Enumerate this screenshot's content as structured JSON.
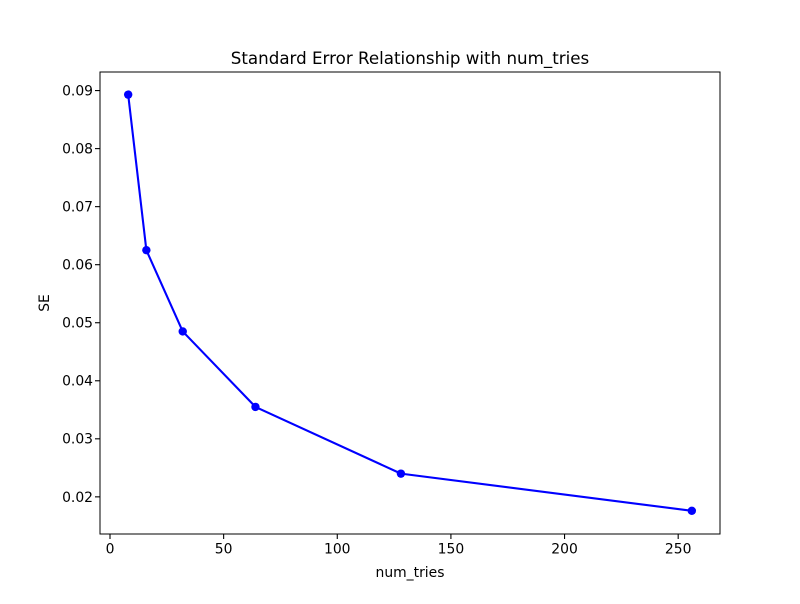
{
  "figure": {
    "background_color": "#ffffff",
    "text_color": "#000000",
    "spine_color": "#000000"
  },
  "chart_data": {
    "type": "line",
    "title": "Standard Error Relationship with num_tries",
    "xlabel": "num_tries",
    "ylabel": "SE",
    "x": [
      8,
      16,
      32,
      64,
      128,
      256
    ],
    "y": [
      0.0893,
      0.0625,
      0.0485,
      0.0355,
      0.024,
      0.0176
    ],
    "xticks": [
      0,
      50,
      100,
      150,
      200,
      250
    ],
    "yticks": [
      0.02,
      0.03,
      0.04,
      0.05,
      0.06,
      0.07,
      0.08,
      0.09
    ],
    "ytick_labels": [
      "0.02",
      "0.03",
      "0.04",
      "0.05",
      "0.06",
      "0.07",
      "0.08",
      "0.09"
    ],
    "xlim": [
      -4.4,
      268.4
    ],
    "ylim": [
      0.0136,
      0.0932
    ],
    "line_color": "#0000ff",
    "marker": "circle",
    "marker_color": "#0000ff",
    "grid": false,
    "legend": null
  }
}
